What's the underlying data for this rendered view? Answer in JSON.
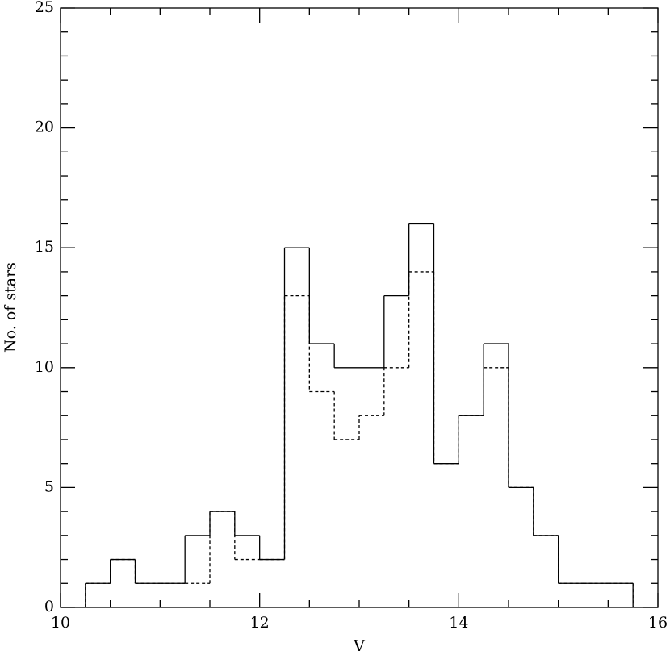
{
  "chart_data": {
    "type": "histogram",
    "xlabel": "V",
    "ylabel": "No. of stars",
    "bins": [
      10.25,
      10.5,
      10.75,
      11,
      11.25,
      11.5,
      11.75,
      12,
      12.25,
      12.5,
      12.75,
      13,
      13.25,
      13.5,
      13.75,
      14,
      14.25,
      14.5,
      14.75,
      15,
      15.25,
      15.5,
      15.75
    ],
    "series": [
      {
        "color": "#000000",
        "dash": "solid",
        "values": [
          1,
          2,
          1,
          1,
          3,
          4,
          3,
          2,
          15,
          11,
          10,
          10,
          13,
          16,
          6,
          8,
          11,
          5,
          3,
          1,
          1,
          1
        ]
      },
      {
        "color": "#000000",
        "dash": "dashed",
        "values": [
          1,
          2,
          1,
          1,
          1,
          4,
          2,
          2,
          13,
          9,
          7,
          8,
          10,
          14,
          6,
          8,
          10,
          5,
          3,
          1,
          1,
          1
        ]
      }
    ],
    "xlim": [
      10,
      16
    ],
    "xticks": [
      10,
      12,
      14,
      16
    ],
    "xminorticks": [
      10.5,
      11,
      11.5,
      12.5,
      13,
      13.5,
      14.5,
      15,
      15.5
    ],
    "ylim": [
      0,
      25
    ],
    "yticks": [
      0,
      5,
      10,
      15,
      20,
      25
    ],
    "yminorticks": [
      1,
      2,
      3,
      4,
      6,
      7,
      8,
      9,
      11,
      12,
      13,
      14,
      16,
      17,
      18,
      19,
      21,
      22,
      23,
      24
    ],
    "grid": false
  }
}
